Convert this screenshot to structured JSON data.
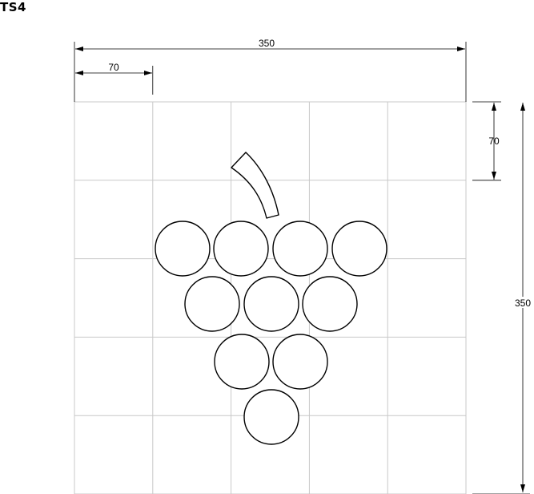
{
  "title": "TS4",
  "dimensions": {
    "top_total": "350",
    "top_cell": "70",
    "right_total": "350",
    "right_cell": "70"
  },
  "grid": {
    "columns": 5,
    "rows": 5
  },
  "grapes_per_row": [
    4,
    3,
    2,
    1
  ]
}
